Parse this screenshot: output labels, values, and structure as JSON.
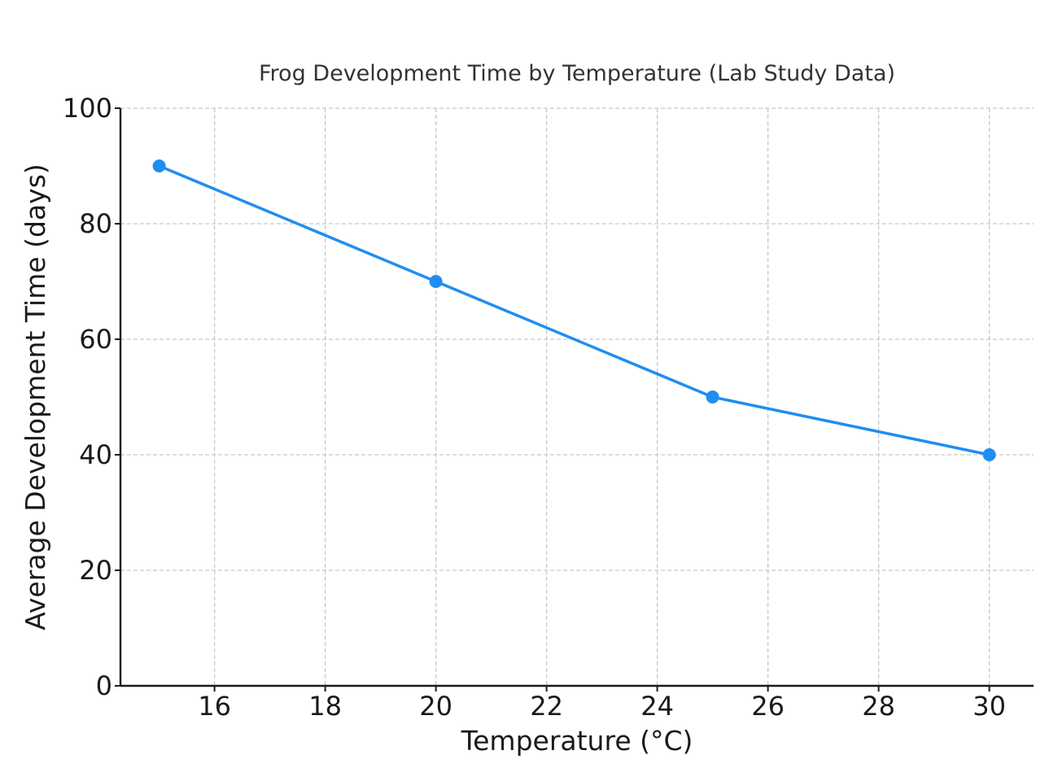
{
  "chart_data": {
    "type": "line",
    "title": "Frog Development Time by Temperature (Lab Study Data)",
    "xlabel": "Temperature (°C)",
    "ylabel": "Average Development Time (days)",
    "x": [
      15,
      20,
      25,
      30
    ],
    "series": [
      {
        "values": [
          90,
          70,
          50,
          40
        ],
        "color": "#1f8ef1",
        "marker": "circle"
      }
    ],
    "xlim": [
      14.3,
      30.8
    ],
    "ylim": [
      0,
      100
    ],
    "xticks": [
      16,
      18,
      20,
      22,
      24,
      26,
      28,
      30
    ],
    "yticks": [
      0,
      20,
      40,
      60,
      80,
      100
    ],
    "grid": true,
    "grid_style": "dashed"
  }
}
